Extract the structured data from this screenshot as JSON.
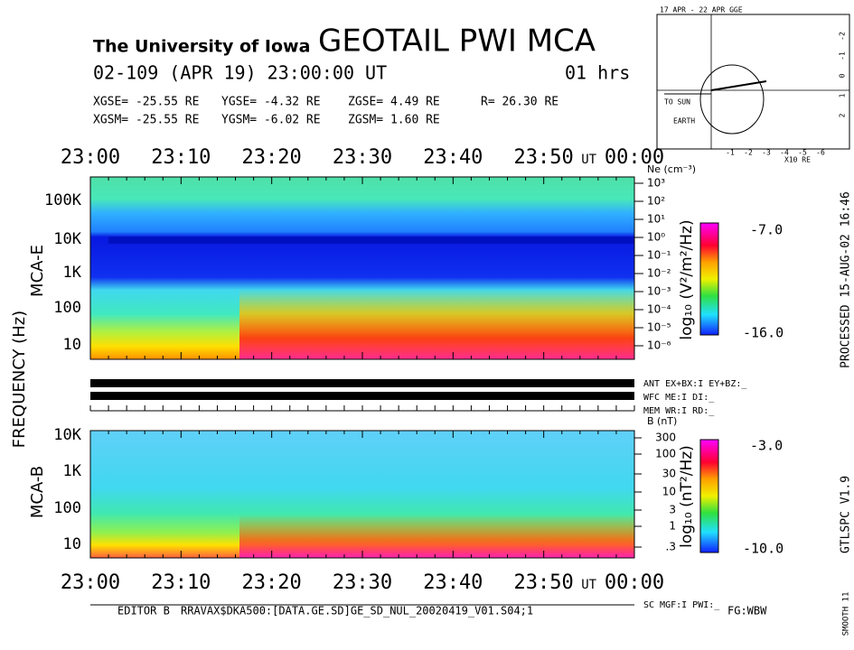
{
  "header": {
    "institution": "The University of Iowa",
    "title": "GEOTAIL PWI MCA",
    "date": "02-109 (APR 19) 23:00:00 UT",
    "duration": "01 hrs"
  },
  "coordinates": [
    [
      "XGSE= -25.55 RE",
      "YGSE= -4.32 RE",
      "ZGSE= 4.49 RE",
      "R= 26.30 RE"
    ],
    [
      "XGSM= -25.55 RE",
      "YGSM= -6.02 RE",
      "ZGSM= 1.60 RE"
    ]
  ],
  "time_axis": {
    "labels": [
      "23:00",
      "23:10",
      "23:20",
      "23:30",
      "23:40",
      "23:50"
    ],
    "unit": "UT",
    "end": "00:00"
  },
  "y_axis_label": "FREQUENCY (Hz)",
  "mca_e": {
    "label": "MCA-E",
    "freq_labels": [
      "100K",
      "10K",
      "1K",
      "100",
      "10"
    ],
    "density_title": "Ne (cm⁻³)",
    "density_labels": [
      "10³",
      "10²",
      "10¹",
      "10⁰",
      "10⁻¹",
      "10⁻²",
      "10⁻³",
      "10⁻⁴",
      "10⁻⁵",
      "10⁻⁶"
    ],
    "colorbar": {
      "max": "-7.0",
      "min": "-16.0",
      "label": "log₁₀ (V²/m²/Hz)"
    }
  },
  "status": [
    "ANT EX+BX:I  EY+BZ:_",
    "WFC ME:I     DI:_",
    "MEM WR:I     RD:_"
  ],
  "mca_b": {
    "label": "MCA-B",
    "freq_labels": [
      "10K",
      "1K",
      "100",
      "10"
    ],
    "field_title": "B (nT)",
    "field_labels": [
      "300",
      "100",
      "30",
      "10",
      "3",
      "1",
      ".3"
    ],
    "colorbar": {
      "max": "-3.0",
      "min": "-10.0",
      "label": "log₁₀ (nT²/Hz)"
    }
  },
  "sc_status": "SC MGF:I  PWI:_",
  "footer": {
    "editor": "EDITOR B",
    "file": "RRAVAX$DKA500:[DATA.GE.SD]GE_SD_NUL_20020419_V01.S04;1",
    "fg": "FG:WBW"
  },
  "side": {
    "processed": "PROCESSED 15-AUG-02  16:46",
    "version": "GTLSPC  V1.9",
    "smooth": "SMOOTH 11"
  },
  "orbit": {
    "title": "17 APR - 22 APR  GGE",
    "sun": "TO SUN",
    "earth": "EARTH",
    "scale": "X10 RE",
    "x_ticks": [
      "-1",
      "-2",
      "-3",
      "-4",
      "-5",
      "-6"
    ],
    "y_ticks": [
      "-2",
      "-1",
      "0",
      "1",
      "2"
    ]
  }
}
